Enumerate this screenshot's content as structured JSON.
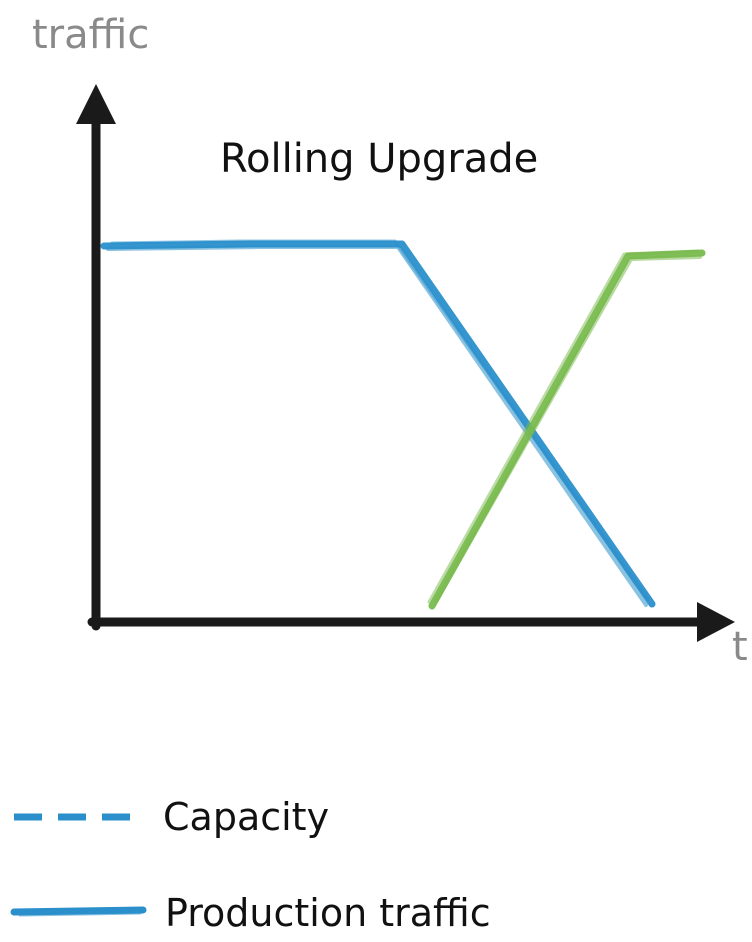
{
  "title": "Rolling Upgrade",
  "y_axis_label": "traffic",
  "x_axis_label": "t",
  "legend": {
    "capacity": "Capacity",
    "production": "Production traffic"
  },
  "colors": {
    "blue": "#2a8fcb",
    "green": "#79ba4e",
    "axis": "#1a1a1a",
    "axis_label": "#8a8a8a"
  }
}
